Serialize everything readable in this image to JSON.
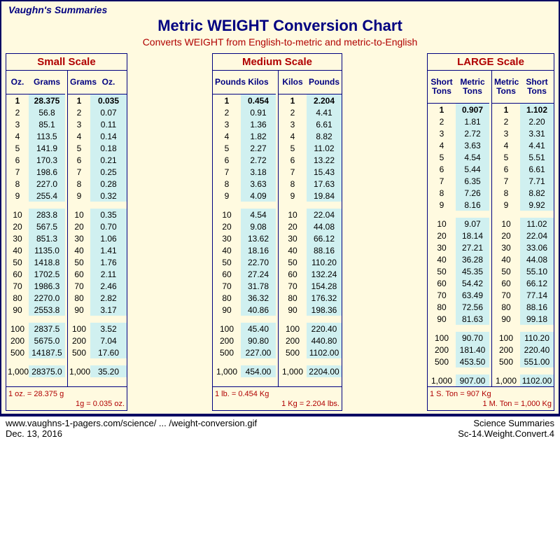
{
  "colors": {
    "page_border": "#000063",
    "page_bg": "#fffae0",
    "title_color": "#000080",
    "accent_red": "#b00000",
    "key_bg": "#fffae0",
    "val_bg": "#d0f0f0",
    "cell_border": "#000080"
  },
  "header": {
    "brand": "Vaughn's Summaries",
    "title": "Metric WEIGHT Conversion Chart",
    "subtitle": "Converts WEIGHT from English-to-metric and metric-to-English"
  },
  "row_keys": [
    "1",
    "2",
    "3",
    "4",
    "5",
    "6",
    "7",
    "8",
    "9",
    "10",
    "20",
    "30",
    "40",
    "50",
    "60",
    "70",
    "80",
    "90",
    "100",
    "200",
    "500",
    "1,000"
  ],
  "gap_after_indices": [
    8,
    17,
    20
  ],
  "bold_row_index": 0,
  "scales": [
    {
      "title": "Small Scale",
      "col_widths": {
        "key": 32,
        "val": 52
      },
      "subtables": [
        {
          "headers": [
            "Oz.",
            "Grams"
          ],
          "values": [
            "28.375",
            "56.8",
            "85.1",
            "113.5",
            "141.9",
            "170.3",
            "198.6",
            "227.0",
            "255.4",
            "283.8",
            "567.5",
            "851.3",
            "1135.0",
            "1418.8",
            "1702.5",
            "1986.3",
            "2270.0",
            "2553.8",
            "2837.5",
            "5675.0",
            "14187.5",
            "28375.0"
          ]
        },
        {
          "headers": [
            "Grams",
            "Oz."
          ],
          "values": [
            "0.035",
            "0.07",
            "0.11",
            "0.14",
            "0.18",
            "0.21",
            "0.25",
            "0.28",
            "0.32",
            "0.35",
            "0.70",
            "1.06",
            "1.41",
            "1.76",
            "2.11",
            "2.46",
            "2.82",
            "3.17",
            "3.52",
            "7.04",
            "17.60",
            "35.20"
          ]
        }
      ],
      "footnotes": [
        {
          "left": "1 oz. = 28.375 g",
          "right": ""
        },
        {
          "left": "",
          "right": "1g = 0.035 oz."
        }
      ]
    },
    {
      "title": "Medium Scale",
      "col_widths": {
        "key": 40,
        "val": 50
      },
      "subtables": [
        {
          "headers": [
            "Pounds",
            "Kilos"
          ],
          "values": [
            "0.454",
            "0.91",
            "1.36",
            "1.82",
            "2.27",
            "2.72",
            "3.18",
            "3.63",
            "4.09",
            "4.54",
            "9.08",
            "13.62",
            "18.16",
            "22.70",
            "27.24",
            "31.78",
            "36.32",
            "40.86",
            "45.40",
            "90.80",
            "227.00",
            "454.00"
          ]
        },
        {
          "headers": [
            "Kilos",
            "Pounds"
          ],
          "values": [
            "2.204",
            "4.41",
            "6.61",
            "8.82",
            "11.02",
            "13.22",
            "15.43",
            "17.63",
            "19.84",
            "22.04",
            "44.08",
            "66.12",
            "88.16",
            "110.20",
            "132.24",
            "154.28",
            "176.32",
            "198.36",
            "220.40",
            "440.80",
            "1102.00",
            "2204.00"
          ]
        }
      ],
      "footnotes": [
        {
          "left": "1 lb. = 0.454 Kg",
          "right": ""
        },
        {
          "left": "",
          "right": "1 Kg = 2.204 lbs."
        }
      ]
    },
    {
      "title": "LARGE Scale",
      "col_widths": {
        "key": 40,
        "val": 48
      },
      "subtables": [
        {
          "headers": [
            "Short\nTons",
            "Metric\nTons"
          ],
          "values": [
            "0.907",
            "1.81",
            "2.72",
            "3.63",
            "4.54",
            "5.44",
            "6.35",
            "7.26",
            "8.16",
            "9.07",
            "18.14",
            "27.21",
            "36.28",
            "45.35",
            "54.42",
            "63.49",
            "72.56",
            "81.63",
            "90.70",
            "181.40",
            "453.50",
            "907.00"
          ]
        },
        {
          "headers": [
            "Metric\nTons",
            "Short\nTons"
          ],
          "values": [
            "1.102",
            "2.20",
            "3.31",
            "4.41",
            "5.51",
            "6.61",
            "7.71",
            "8.82",
            "9.92",
            "11.02",
            "22.04",
            "33.06",
            "44.08",
            "55.10",
            "66.12",
            "77.14",
            "88.16",
            "99.18",
            "110.20",
            "220.40",
            "551.00",
            "1102.00"
          ]
        }
      ],
      "footnotes": [
        {
          "left": "1 S. Ton = 907 Kg",
          "right": ""
        },
        {
          "left": "",
          "right": "1 M. Ton = 1,000 Kg"
        }
      ]
    }
  ],
  "bottom": {
    "left1": "www.vaughns-1-pagers.com/science/ ... /weight-conversion.gif",
    "left2": "Dec. 13, 2016",
    "right1": "Science Summaries",
    "right2": "Sc-14.Weight.Convert.4"
  }
}
